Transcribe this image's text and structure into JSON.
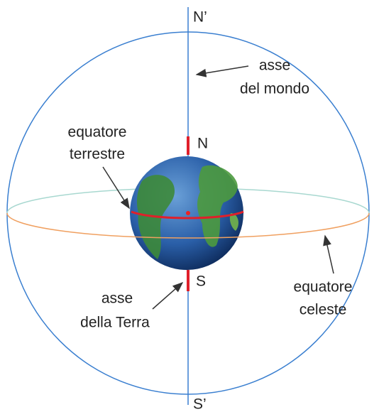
{
  "labels": {
    "north_celestial": "N’",
    "south_celestial": "S’",
    "north": "N",
    "south": "S",
    "world_axis": [
      "asse",
      "del mondo"
    ],
    "earth_equator": [
      "equatore",
      "terrestre"
    ],
    "earth_axis": [
      "asse",
      "della Terra"
    ],
    "celestial_equator": [
      "equatore",
      "celeste"
    ]
  }
}
